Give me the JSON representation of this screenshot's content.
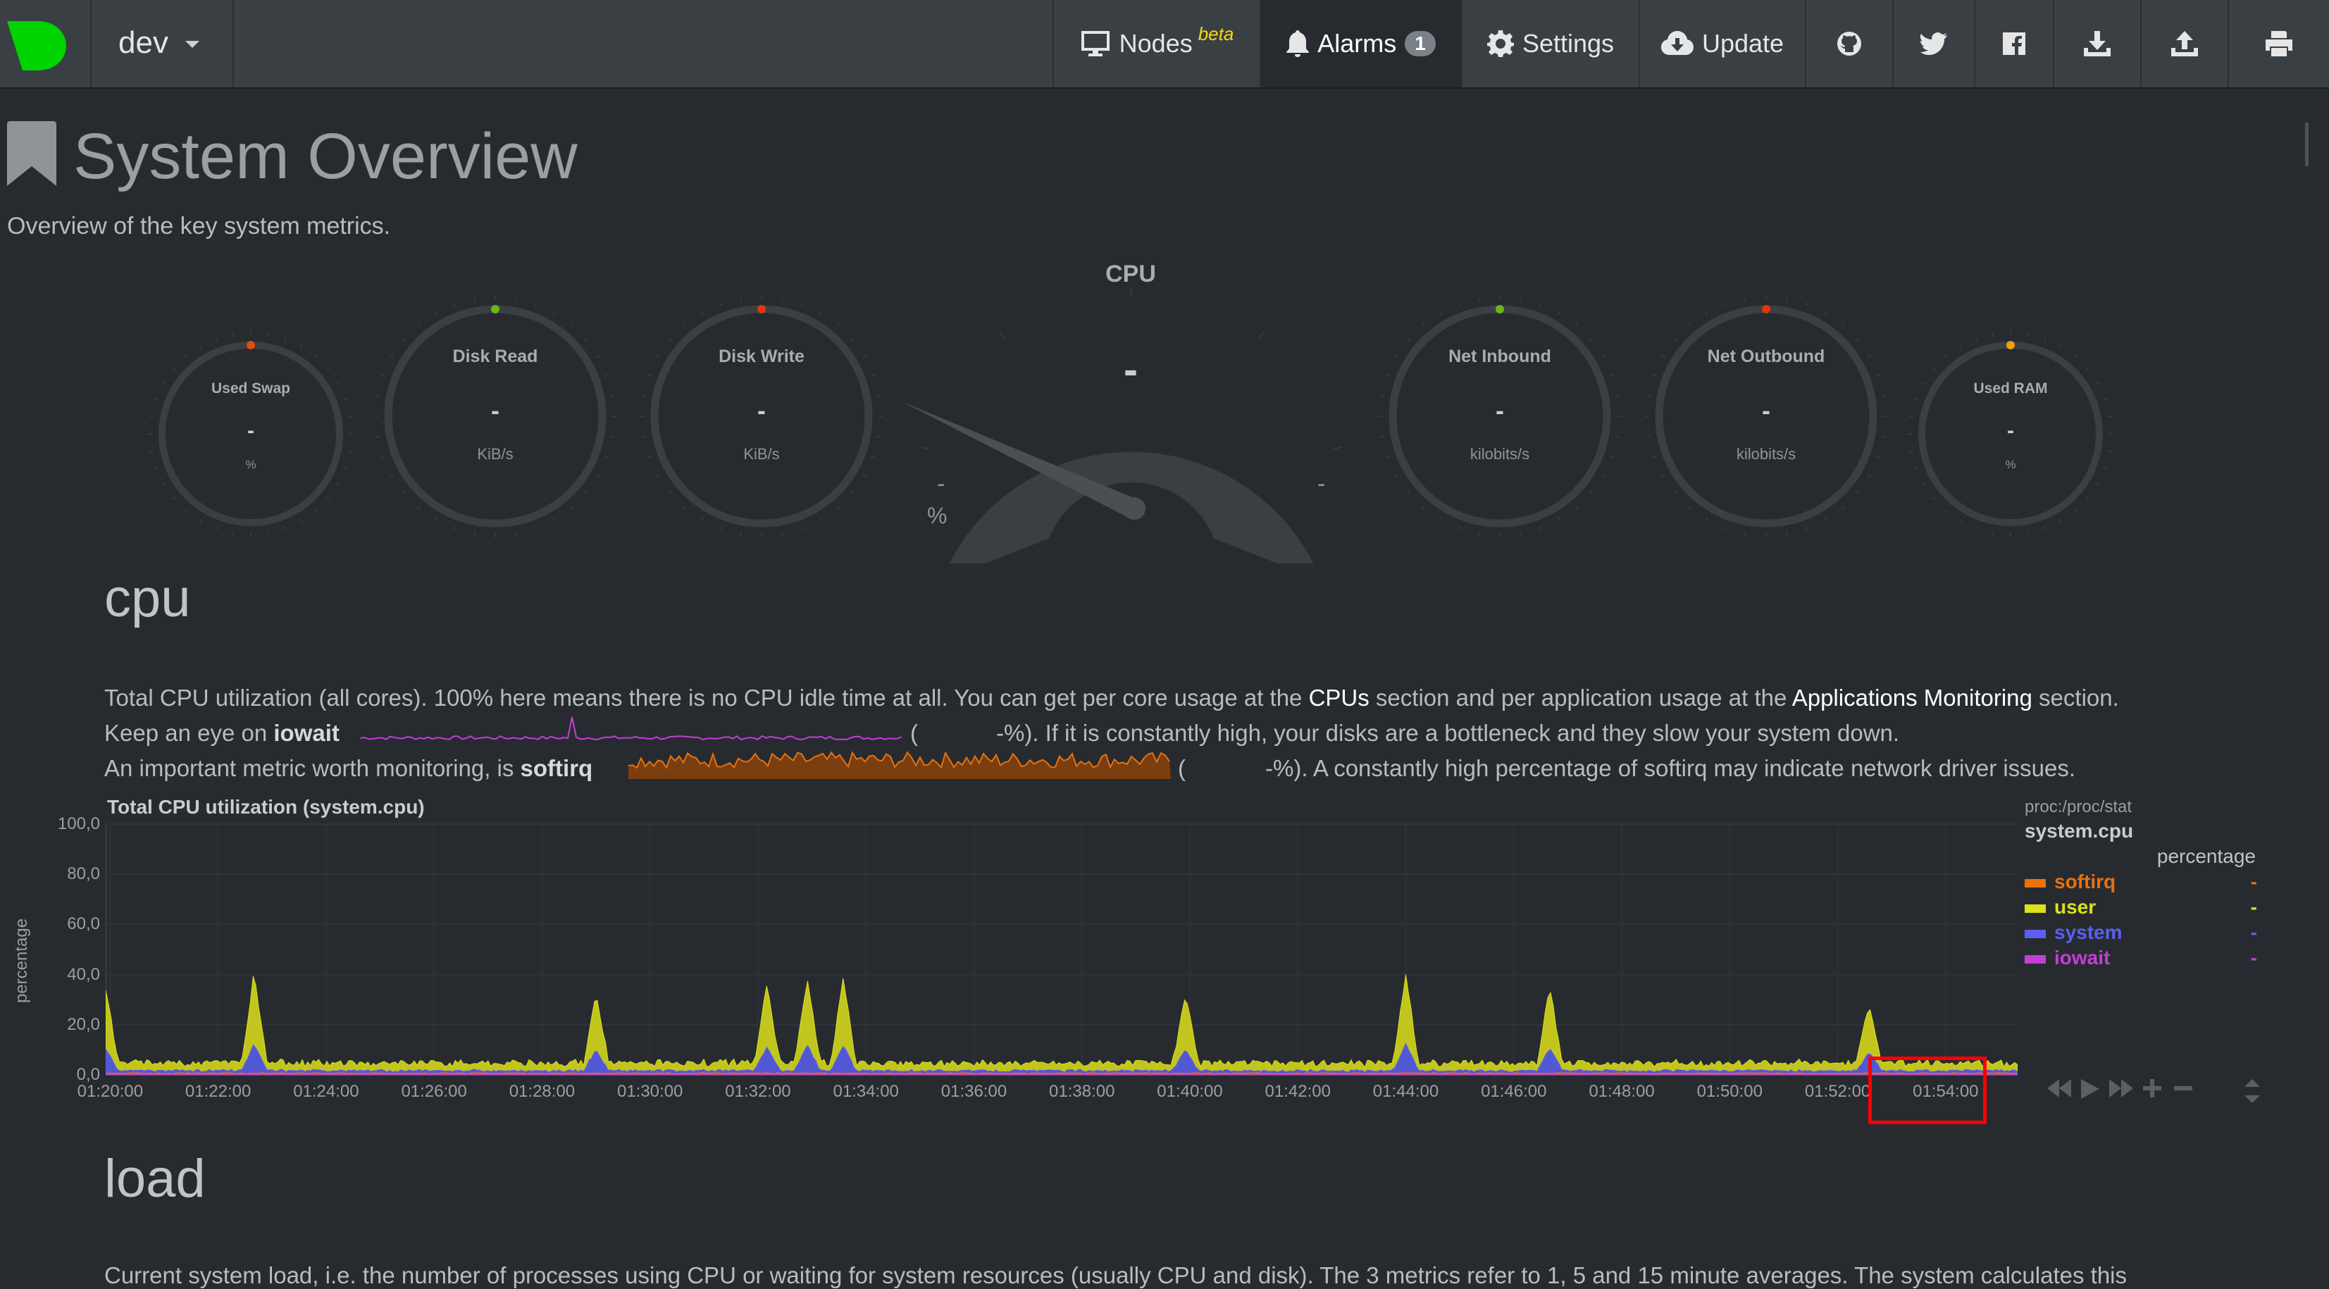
{
  "navbar": {
    "host": "dev",
    "nodes_label": "Nodes",
    "nodes_badge": "beta",
    "alarms_label": "Alarms",
    "alarms_count": "1",
    "settings_label": "Settings",
    "update_label": "Update",
    "icons": [
      "github-icon",
      "twitter-icon",
      "facebook-icon",
      "download-icon",
      "upload-icon",
      "print-icon"
    ]
  },
  "page": {
    "title": "System Overview",
    "subtitle": "Overview of the key system metrics."
  },
  "gauges": {
    "swap": {
      "title": "Used Swap",
      "value": "-",
      "unit": "%"
    },
    "disk_read": {
      "title": "Disk Read",
      "value": "-",
      "unit": "KiB/s"
    },
    "disk_write": {
      "title": "Disk Write",
      "value": "-",
      "unit": "KiB/s"
    },
    "cpu": {
      "title": "CPU",
      "value": "-",
      "min": "-",
      "max": "-",
      "unit": "%"
    },
    "net_in": {
      "title": "Net Inbound",
      "value": "-",
      "unit": "kilobits/s"
    },
    "net_out": {
      "title": "Net Outbound",
      "value": "-",
      "unit": "kilobits/s"
    },
    "ram": {
      "title": "Used RAM",
      "value": "-",
      "unit": "%"
    }
  },
  "cpu_section": {
    "title": "cpu",
    "line1_a": "Total CPU utilization (all cores). 100% here means there is no CPU idle time at all. You can get per core usage at the ",
    "line1_link1": "CPUs",
    "line1_b": " section and per application usage at the ",
    "line1_link2": "Applications Monitoring",
    "line1_c": " section.",
    "line2_a": "Keep an eye on ",
    "line2_bold": "iowait",
    "line2_open": "(",
    "line2_b": "-%). If it is constantly high, your disks are a bottleneck and they slow your system down.",
    "line3_a": "An important metric worth monitoring, is ",
    "line3_bold": "softirq",
    "line3_open": "(",
    "line3_b": "-%). A constantly high percentage of softirq may indicate network driver issues."
  },
  "chart": {
    "title": "Total CPU utilization (system.cpu)",
    "y_title": "percentage",
    "source": "proc:/proc/stat",
    "context": "system.cpu",
    "units": "percentage",
    "legend": [
      {
        "name": "softirq",
        "value": "-",
        "color": "#e8720c"
      },
      {
        "name": "user",
        "value": "-",
        "color": "#dde01a"
      },
      {
        "name": "system",
        "value": "-",
        "color": "#5b5ff0"
      },
      {
        "name": "iowait",
        "value": "-",
        "color": "#c23fd6"
      }
    ]
  },
  "chart_data": {
    "type": "area",
    "title": "Total CPU utilization (system.cpu)",
    "ylabel": "percentage",
    "ylim": [
      0,
      100
    ],
    "y_ticks": [
      "100,0",
      "80,0",
      "60,0",
      "40,0",
      "20,0",
      "0,0"
    ],
    "x_ticks": [
      "01:20:00",
      "01:22:00",
      "01:24:00",
      "01:26:00",
      "01:28:00",
      "01:30:00",
      "01:32:00",
      "01:34:00",
      "01:36:00",
      "01:38:00",
      "01:40:00",
      "01:42:00",
      "01:44:00",
      "01:46:00",
      "01:48:00",
      "01:50:00",
      "01:52:00",
      "01:54:00"
    ],
    "series": [
      {
        "name": "user",
        "color": "#dde01a",
        "baseline": 3
      },
      {
        "name": "system",
        "color": "#5b5ff0",
        "baseline": 1
      },
      {
        "name": "softirq",
        "color": "#e8720c",
        "baseline": 0.5
      },
      {
        "name": "iowait",
        "color": "#c23fd6",
        "baseline": 0.2
      }
    ],
    "spikes": [
      {
        "x": "01:19:55",
        "value": 30
      },
      {
        "x": "01:22:40",
        "value": 36
      },
      {
        "x": "01:29:00",
        "value": 28
      },
      {
        "x": "01:32:10",
        "value": 32
      },
      {
        "x": "01:32:55",
        "value": 34
      },
      {
        "x": "01:33:35",
        "value": 34
      },
      {
        "x": "01:39:55",
        "value": 28
      },
      {
        "x": "01:44:00",
        "value": 36
      },
      {
        "x": "01:46:40",
        "value": 30
      },
      {
        "x": "01:52:35",
        "value": 24
      }
    ]
  },
  "load_section": {
    "title": "load",
    "line1": "Current system load, i.e. the number of processes using CPU or waiting for system resources (usually CPU and disk). The 3 metrics refer to 1, 5 and 15 minute averages. The system calculates this"
  }
}
